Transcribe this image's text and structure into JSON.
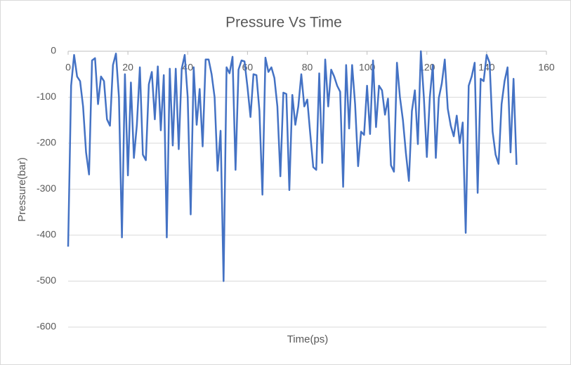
{
  "chart_data": {
    "type": "line",
    "title": "Pressure Vs Time",
    "x_label": "Time(ps)",
    "y_label": "Pressure(bar)",
    "x": [
      0,
      1,
      2,
      3,
      4,
      5,
      6,
      7,
      8,
      9,
      10,
      11,
      12,
      13,
      14,
      15,
      16,
      17,
      18,
      19,
      20,
      21,
      22,
      23,
      24,
      25,
      26,
      27,
      28,
      29,
      30,
      31,
      32,
      33,
      34,
      35,
      36,
      37,
      38,
      39,
      40,
      41,
      42,
      43,
      44,
      45,
      46,
      47,
      48,
      49,
      50,
      51,
      52,
      53,
      54,
      55,
      56,
      57,
      58,
      59,
      60,
      61,
      62,
      63,
      64,
      65,
      66,
      67,
      68,
      69,
      70,
      71,
      72,
      73,
      74,
      75,
      76,
      77,
      78,
      79,
      80,
      81,
      82,
      83,
      84,
      85,
      86,
      87,
      88,
      89,
      90,
      91,
      92,
      93,
      94,
      95,
      96,
      97,
      98,
      99,
      100,
      101,
      102,
      103,
      104,
      105,
      106,
      107,
      108,
      109,
      110,
      111,
      112,
      113,
      114,
      115,
      116,
      117,
      118,
      119,
      120,
      121,
      122,
      123,
      124,
      125,
      126,
      127,
      128,
      129,
      130,
      131,
      132,
      133,
      134,
      135,
      136,
      137,
      138,
      139,
      140,
      141,
      142,
      143,
      144,
      145,
      146,
      147,
      148,
      149,
      150
    ],
    "series": [
      {
        "name": "Pressure",
        "color": "#4472c4",
        "values": [
          -425,
          -75,
          -8,
          -55,
          -65,
          -120,
          -220,
          -268,
          -20,
          -15,
          -115,
          -55,
          -65,
          -148,
          -162,
          -30,
          -5,
          -100,
          -405,
          -50,
          -270,
          -68,
          -232,
          -160,
          -35,
          -225,
          -237,
          -72,
          -45,
          -148,
          -33,
          -172,
          -52,
          -405,
          -38,
          -205,
          -38,
          -213,
          -38,
          -8,
          -100,
          -355,
          -35,
          -160,
          -82,
          -207,
          -18,
          -18,
          -50,
          -100,
          -260,
          -173,
          -500,
          -35,
          -48,
          -12,
          -258,
          -40,
          -20,
          -22,
          -78,
          -143,
          -50,
          -52,
          -130,
          -312,
          -14,
          -45,
          -35,
          -58,
          -120,
          -272,
          -90,
          -93,
          -302,
          -95,
          -160,
          -120,
          -50,
          -120,
          -105,
          -180,
          -252,
          -258,
          -48,
          -243,
          -18,
          -120,
          -40,
          -55,
          -75,
          -88,
          -295,
          -30,
          -168,
          -30,
          -115,
          -250,
          -175,
          -182,
          -75,
          -180,
          -20,
          -165,
          -75,
          -85,
          -138,
          -103,
          -248,
          -262,
          -25,
          -100,
          -150,
          -222,
          -282,
          -130,
          -85,
          -202,
          0,
          -100,
          -230,
          -100,
          -30,
          -232,
          -102,
          -70,
          -18,
          -125,
          -162,
          -185,
          -140,
          -200,
          -155,
          -395,
          -75,
          -55,
          -25,
          -308,
          -60,
          -65,
          -8,
          -25,
          -175,
          -225,
          -245,
          -115,
          -65,
          -35,
          -220,
          -60,
          -247
        ]
      }
    ],
    "xlim": [
      0,
      160
    ],
    "xticks": [
      0,
      20,
      40,
      60,
      80,
      100,
      120,
      140,
      160
    ],
    "ylim": [
      -600,
      0
    ],
    "yticks": [
      0,
      -100,
      -200,
      -300,
      -400,
      -500,
      -600
    ],
    "grid": true
  }
}
